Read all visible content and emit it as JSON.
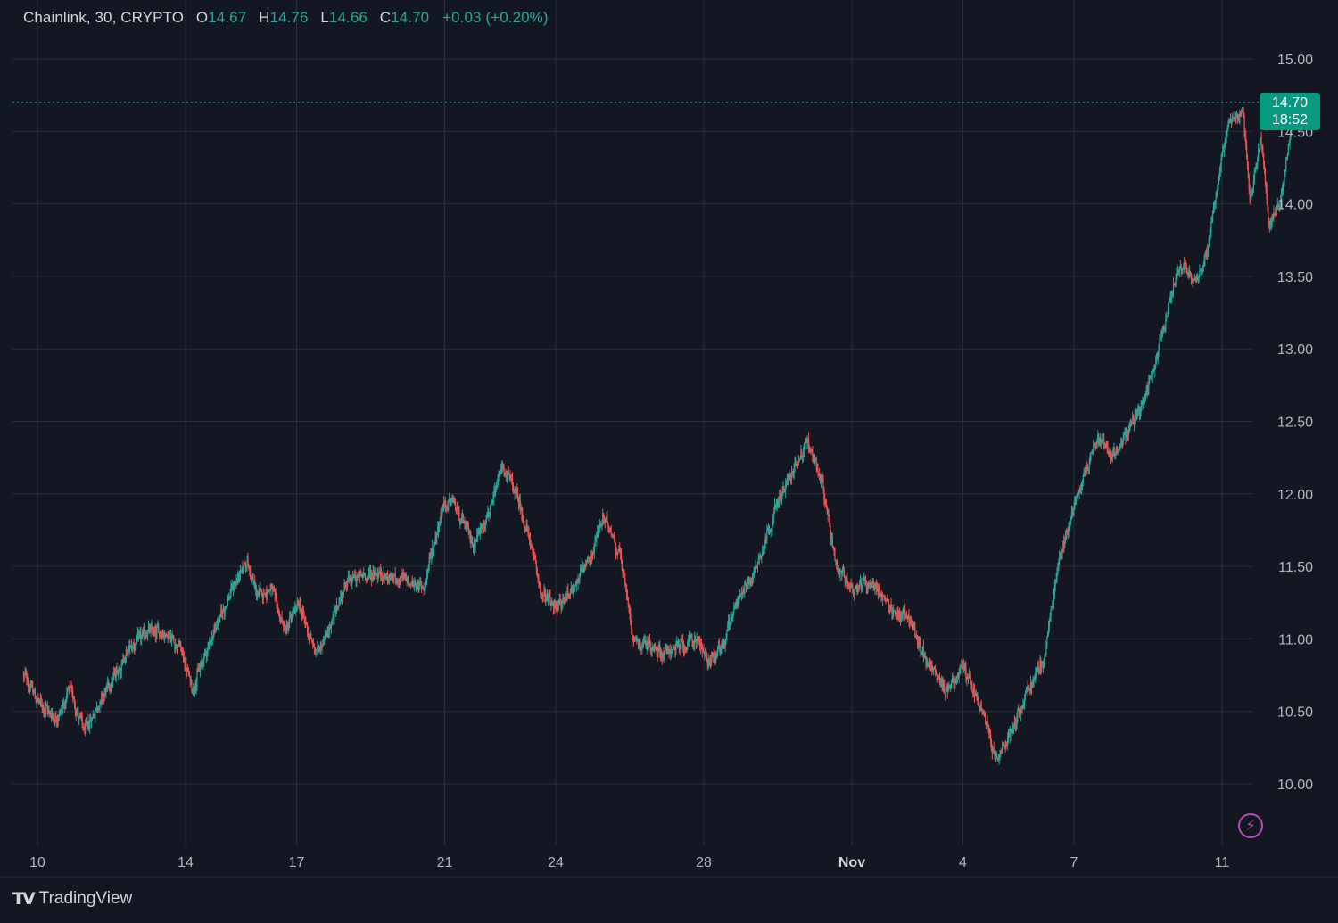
{
  "header": {
    "symbol": "Chainlink, 30, CRYPTO",
    "open_label": "O",
    "open": "14.67",
    "high_label": "H",
    "high": "14.76",
    "low_label": "L",
    "low": "14.66",
    "close_label": "C",
    "close": "14.70",
    "change": "+0.03 (+0.20%)"
  },
  "last_price": {
    "price": "14.70",
    "countdown": "18:52"
  },
  "brand": {
    "name": "TradingView"
  },
  "icons": {
    "brand_logo": "tradingview-logo",
    "bolt": "lightning-icon"
  },
  "colors": {
    "background": "#131722",
    "up": "#26a69a",
    "down": "#ef5350",
    "grid": "#2a2e39",
    "axis_text": "#b2b5be",
    "price_tag": "#089981"
  },
  "chart_data": {
    "type": "candlestick",
    "interval": "30",
    "x_ticks": [
      "10",
      "14",
      "17",
      "21",
      "24",
      "28",
      "Nov",
      "4",
      "7",
      "11"
    ],
    "y_ticks": [
      "10.00",
      "10.50",
      "11.00",
      "11.50",
      "12.00",
      "12.50",
      "13.00",
      "13.50",
      "14.00",
      "14.50",
      "15.00"
    ],
    "ylim": [
      9.6,
      15.35
    ],
    "grid": true,
    "last_price_line": 14.7,
    "path_points": [
      {
        "x": "Oct 9 15:00",
        "y": 10.75
      },
      {
        "x": "Oct 10 01:00",
        "y": 10.55
      },
      {
        "x": "Oct 10 12:00",
        "y": 10.45
      },
      {
        "x": "Oct 10 21:00",
        "y": 10.65
      },
      {
        "x": "Oct 11 06:00",
        "y": 10.35
      },
      {
        "x": "Oct 11 15:00",
        "y": 10.55
      },
      {
        "x": "Oct 12 00:00",
        "y": 10.72
      },
      {
        "x": "Oct 12 12:00",
        "y": 10.95
      },
      {
        "x": "Oct 13 00:00",
        "y": 11.05
      },
      {
        "x": "Oct 13 09:00",
        "y": 11.05
      },
      {
        "x": "Oct 13 20:00",
        "y": 10.95
      },
      {
        "x": "Oct 14 04:00",
        "y": 10.65
      },
      {
        "x": "Oct 14 14:00",
        "y": 10.95
      },
      {
        "x": "Oct 15 00:00",
        "y": 11.2
      },
      {
        "x": "Oct 15 15:00",
        "y": 11.55
      },
      {
        "x": "Oct 15 22:00",
        "y": 11.3
      },
      {
        "x": "Oct 16 07:00",
        "y": 11.35
      },
      {
        "x": "Oct 16 16:00",
        "y": 11.05
      },
      {
        "x": "Oct 17 01:00",
        "y": 11.25
      },
      {
        "x": "Oct 17 12:00",
        "y": 10.9
      },
      {
        "x": "Oct 17 22:00",
        "y": 11.1
      },
      {
        "x": "Oct 18 08:00",
        "y": 11.4
      },
      {
        "x": "Oct 19 01:00",
        "y": 11.45
      },
      {
        "x": "Oct 19 22:00",
        "y": 11.4
      },
      {
        "x": "Oct 20 10:00",
        "y": 11.35
      },
      {
        "x": "Oct 20 22:00",
        "y": 11.9
      },
      {
        "x": "Oct 21 05:00",
        "y": 11.95
      },
      {
        "x": "Oct 21 18:00",
        "y": 11.65
      },
      {
        "x": "Oct 22 06:00",
        "y": 11.9
      },
      {
        "x": "Oct 22 13:00",
        "y": 12.2
      },
      {
        "x": "Oct 22 22:00",
        "y": 12.0
      },
      {
        "x": "Oct 23 06:00",
        "y": 11.7
      },
      {
        "x": "Oct 23 15:00",
        "y": 11.3
      },
      {
        "x": "Oct 24 00:00",
        "y": 11.2
      },
      {
        "x": "Oct 24 10:00",
        "y": 11.35
      },
      {
        "x": "Oct 24 22:00",
        "y": 11.55
      },
      {
        "x": "Oct 25 06:00",
        "y": 11.85
      },
      {
        "x": "Oct 25 17:00",
        "y": 11.6
      },
      {
        "x": "Oct 26 02:00",
        "y": 11.0
      },
      {
        "x": "Oct 26 11:00",
        "y": 10.95
      },
      {
        "x": "Oct 26 21:00",
        "y": 10.9
      },
      {
        "x": "Oct 27 08:00",
        "y": 10.95
      },
      {
        "x": "Oct 27 20:00",
        "y": 11.0
      },
      {
        "x": "Oct 28 02:00",
        "y": 10.85
      },
      {
        "x": "Oct 28 12:00",
        "y": 10.95
      },
      {
        "x": "Oct 28 20:00",
        "y": 11.25
      },
      {
        "x": "Oct 29 08:00",
        "y": 11.45
      },
      {
        "x": "Oct 29 22:00",
        "y": 11.9
      },
      {
        "x": "Oct 30 11:00",
        "y": 12.2
      },
      {
        "x": "Oct 30 19:00",
        "y": 12.35
      },
      {
        "x": "Oct 31 04:00",
        "y": 12.1
      },
      {
        "x": "Oct 31 13:00",
        "y": 11.5
      },
      {
        "x": "Nov 1 00:00",
        "y": 11.35
      },
      {
        "x": "Nov 1 13:00",
        "y": 11.4
      },
      {
        "x": "Nov 2 00:00",
        "y": 11.2
      },
      {
        "x": "Nov 2 12:00",
        "y": 11.15
      },
      {
        "x": "Nov 3 00:00",
        "y": 10.85
      },
      {
        "x": "Nov 3 12:00",
        "y": 10.65
      },
      {
        "x": "Nov 4 00:00",
        "y": 10.8
      },
      {
        "x": "Nov 4 12:00",
        "y": 10.5
      },
      {
        "x": "Nov 4 22:00",
        "y": 10.15
      },
      {
        "x": "Nov 5 08:00",
        "y": 10.4
      },
      {
        "x": "Nov 5 18:00",
        "y": 10.65
      },
      {
        "x": "Nov 6 04:00",
        "y": 10.85
      },
      {
        "x": "Nov 6 13:00",
        "y": 11.5
      },
      {
        "x": "Nov 6 22:00",
        "y": 11.85
      },
      {
        "x": "Nov 7 06:00",
        "y": 12.15
      },
      {
        "x": "Nov 7 15:00",
        "y": 12.4
      },
      {
        "x": "Nov 8 00:00",
        "y": 12.25
      },
      {
        "x": "Nov 8 12:00",
        "y": 12.45
      },
      {
        "x": "Nov 9 01:00",
        "y": 12.75
      },
      {
        "x": "Nov 9 12:00",
        "y": 13.25
      },
      {
        "x": "Nov 9 20:00",
        "y": 13.6
      },
      {
        "x": "Nov 10 06:00",
        "y": 13.45
      },
      {
        "x": "Nov 10 14:00",
        "y": 13.65
      },
      {
        "x": "Nov 10 21:00",
        "y": 14.15
      },
      {
        "x": "Nov 11 03:00",
        "y": 14.55
      },
      {
        "x": "Nov 11 13:00",
        "y": 14.65
      },
      {
        "x": "Nov 11 18:00",
        "y": 14.0
      },
      {
        "x": "Nov 12 01:00",
        "y": 14.45
      },
      {
        "x": "Nov 12 06:00",
        "y": 13.85
      },
      {
        "x": "Nov 12 14:00",
        "y": 14.05
      },
      {
        "x": "Nov 12 22:00",
        "y": 14.7
      }
    ]
  }
}
